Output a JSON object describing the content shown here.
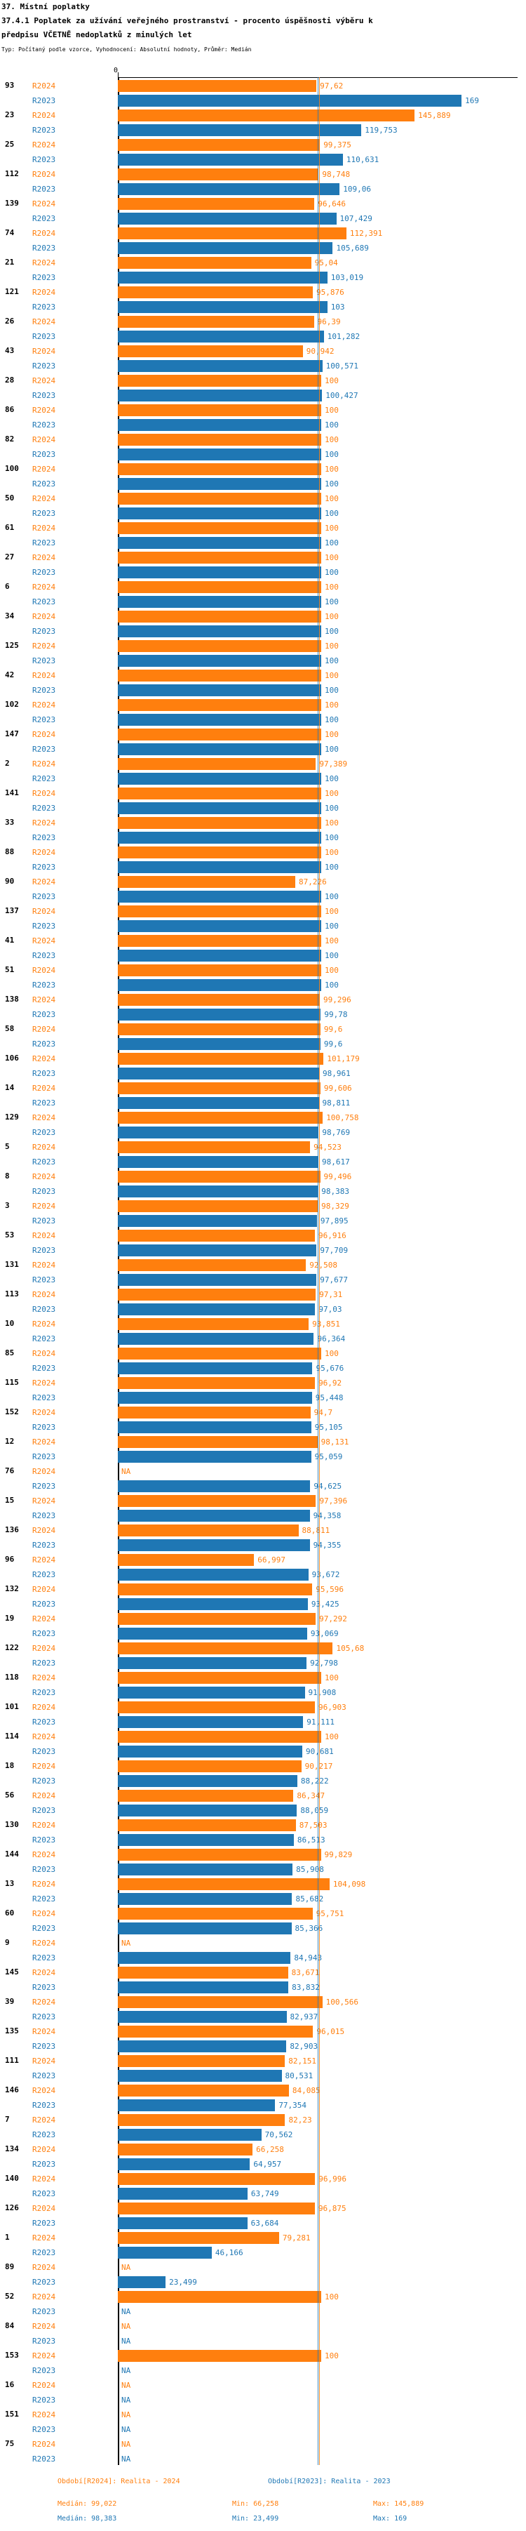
{
  "header": {
    "line1": "37. Místní poplatky",
    "line2": "37.4.1 Poplatek za užívání veřejného prostranství - procento úspěšnosti výběru k",
    "line3": "předpisu VČETNĚ nedoplatků z minulých let",
    "meta": "Typ: Počítaný podle vzorce, Vyhodnocení: Absolutní hodnoty, Průměr: Medián"
  },
  "axis": {
    "zero_label": "0"
  },
  "series": {
    "r2024_label": "R2024",
    "r2023_label": "R2023"
  },
  "colors": {
    "r2024": "#ff7f0e",
    "r2023": "#1f77b4",
    "axis": "#000000"
  },
  "footer": {
    "legend_r2024": "Období[R2024]: Realita - 2024",
    "legend_r2023": "Období[R2023]: Realita - 2023",
    "stats_r2024": {
      "median": "Medián: 99,022",
      "min": "Min: 66,258",
      "max": "Max: 145,889"
    },
    "stats_r2023": {
      "median": "Medián: 98,383",
      "min": "Min: 23,499",
      "max": "Max: 169"
    }
  },
  "chart_data": {
    "type": "bar",
    "orientation": "horizontal",
    "value_axis_min": 0,
    "value_axis_max_drawn": 169,
    "grid": false,
    "series_names": [
      "R2024",
      "R2023"
    ],
    "medians": {
      "r2024": 99.022,
      "r2023": 98.383
    },
    "na_text": "NA",
    "groups": [
      {
        "label": "93",
        "r2024": "97,62",
        "r2023": "169"
      },
      {
        "label": "23",
        "r2024": "145,889",
        "r2023": "119,753"
      },
      {
        "label": "25",
        "r2024": "99,375",
        "r2023": "110,631"
      },
      {
        "label": "112",
        "r2024": "98,748",
        "r2023": "109,06"
      },
      {
        "label": "139",
        "r2024": "96,646",
        "r2023": "107,429"
      },
      {
        "label": "74",
        "r2024": "112,391",
        "r2023": "105,689"
      },
      {
        "label": "21",
        "r2024": "95,04",
        "r2023": "103,019"
      },
      {
        "label": "121",
        "r2024": "95,876",
        "r2023": "103"
      },
      {
        "label": "26",
        "r2024": "96,39",
        "r2023": "101,282"
      },
      {
        "label": "43",
        "r2024": "90,942",
        "r2023": "100,571"
      },
      {
        "label": "28",
        "r2024": "100",
        "r2023": "100,427"
      },
      {
        "label": "86",
        "r2024": "100",
        "r2023": "100"
      },
      {
        "label": "82",
        "r2024": "100",
        "r2023": "100"
      },
      {
        "label": "100",
        "r2024": "100",
        "r2023": "100"
      },
      {
        "label": "50",
        "r2024": "100",
        "r2023": "100"
      },
      {
        "label": "61",
        "r2024": "100",
        "r2023": "100"
      },
      {
        "label": "27",
        "r2024": "100",
        "r2023": "100"
      },
      {
        "label": "6",
        "r2024": "100",
        "r2023": "100"
      },
      {
        "label": "34",
        "r2024": "100",
        "r2023": "100"
      },
      {
        "label": "125",
        "r2024": "100",
        "r2023": "100"
      },
      {
        "label": "42",
        "r2024": "100",
        "r2023": "100"
      },
      {
        "label": "102",
        "r2024": "100",
        "r2023": "100"
      },
      {
        "label": "147",
        "r2024": "100",
        "r2023": "100"
      },
      {
        "label": "2",
        "r2024": "97,389",
        "r2023": "100"
      },
      {
        "label": "141",
        "r2024": "100",
        "r2023": "100"
      },
      {
        "label": "33",
        "r2024": "100",
        "r2023": "100"
      },
      {
        "label": "88",
        "r2024": "100",
        "r2023": "100"
      },
      {
        "label": "90",
        "r2024": "87,226",
        "r2023": "100"
      },
      {
        "label": "137",
        "r2024": "100",
        "r2023": "100"
      },
      {
        "label": "41",
        "r2024": "100",
        "r2023": "100"
      },
      {
        "label": "51",
        "r2024": "100",
        "r2023": "100"
      },
      {
        "label": "138",
        "r2024": "99,296",
        "r2023": "99,78"
      },
      {
        "label": "58",
        "r2024": "99,6",
        "r2023": "99,6"
      },
      {
        "label": "106",
        "r2024": "101,179",
        "r2023": "98,961"
      },
      {
        "label": "14",
        "r2024": "99,606",
        "r2023": "98,811"
      },
      {
        "label": "129",
        "r2024": "100,758",
        "r2023": "98,769"
      },
      {
        "label": "5",
        "r2024": "94,523",
        "r2023": "98,617"
      },
      {
        "label": "8",
        "r2024": "99,496",
        "r2023": "98,383"
      },
      {
        "label": "3",
        "r2024": "98,329",
        "r2023": "97,895"
      },
      {
        "label": "53",
        "r2024": "96,916",
        "r2023": "97,709"
      },
      {
        "label": "131",
        "r2024": "92,508",
        "r2023": "97,677"
      },
      {
        "label": "113",
        "r2024": "97,31",
        "r2023": "97,03"
      },
      {
        "label": "10",
        "r2024": "93,851",
        "r2023": "96,364"
      },
      {
        "label": "85",
        "r2024": "100",
        "r2023": "95,676"
      },
      {
        "label": "115",
        "r2024": "96,92",
        "r2023": "95,448"
      },
      {
        "label": "152",
        "r2024": "94,7",
        "r2023": "95,105"
      },
      {
        "label": "12",
        "r2024": "98,131",
        "r2023": "95,059"
      },
      {
        "label": "76",
        "r2024": "NA",
        "r2023": "94,625"
      },
      {
        "label": "15",
        "r2024": "97,396",
        "r2023": "94,358"
      },
      {
        "label": "136",
        "r2024": "88,811",
        "r2023": "94,355"
      },
      {
        "label": "96",
        "r2024": "66,997",
        "r2023": "93,672"
      },
      {
        "label": "132",
        "r2024": "95,596",
        "r2023": "93,425"
      },
      {
        "label": "19",
        "r2024": "97,292",
        "r2023": "93,069"
      },
      {
        "label": "122",
        "r2024": "105,68",
        "r2023": "92,798"
      },
      {
        "label": "118",
        "r2024": "100",
        "r2023": "91,908"
      },
      {
        "label": "101",
        "r2024": "96,903",
        "r2023": "91,111"
      },
      {
        "label": "114",
        "r2024": "100",
        "r2023": "90,681"
      },
      {
        "label": "18",
        "r2024": "90,217",
        "r2023": "88,222"
      },
      {
        "label": "56",
        "r2024": "86,347",
        "r2023": "88,059"
      },
      {
        "label": "130",
        "r2024": "87,503",
        "r2023": "86,513"
      },
      {
        "label": "144",
        "r2024": "99,829",
        "r2023": "85,908"
      },
      {
        "label": "13",
        "r2024": "104,098",
        "r2023": "85,682"
      },
      {
        "label": "60",
        "r2024": "95,751",
        "r2023": "85,366"
      },
      {
        "label": "9",
        "r2024": "NA",
        "r2023": "84,943"
      },
      {
        "label": "145",
        "r2024": "83,671",
        "r2023": "83,832"
      },
      {
        "label": "39",
        "r2024": "100,566",
        "r2023": "82,937"
      },
      {
        "label": "135",
        "r2024": "96,015",
        "r2023": "82,903"
      },
      {
        "label": "111",
        "r2024": "82,151",
        "r2023": "80,531"
      },
      {
        "label": "146",
        "r2024": "84,085",
        "r2023": "77,354"
      },
      {
        "label": "7",
        "r2024": "82,23",
        "r2023": "70,562"
      },
      {
        "label": "134",
        "r2024": "66,258",
        "r2023": "64,957"
      },
      {
        "label": "140",
        "r2024": "96,996",
        "r2023": "63,749"
      },
      {
        "label": "126",
        "r2024": "96,875",
        "r2023": "63,684"
      },
      {
        "label": "1",
        "r2024": "79,281",
        "r2023": "46,166"
      },
      {
        "label": "89",
        "r2024": "NA",
        "r2023": "23,499"
      },
      {
        "label": "52",
        "r2024": "100",
        "r2023": "NA"
      },
      {
        "label": "84",
        "r2024": "NA",
        "r2023": "NA"
      },
      {
        "label": "153",
        "r2024": "100",
        "r2023": "NA"
      },
      {
        "label": "16",
        "r2024": "NA",
        "r2023": "NA"
      },
      {
        "label": "151",
        "r2024": "NA",
        "r2023": "NA"
      },
      {
        "label": "75",
        "r2024": "NA",
        "r2023": "NA"
      }
    ]
  }
}
